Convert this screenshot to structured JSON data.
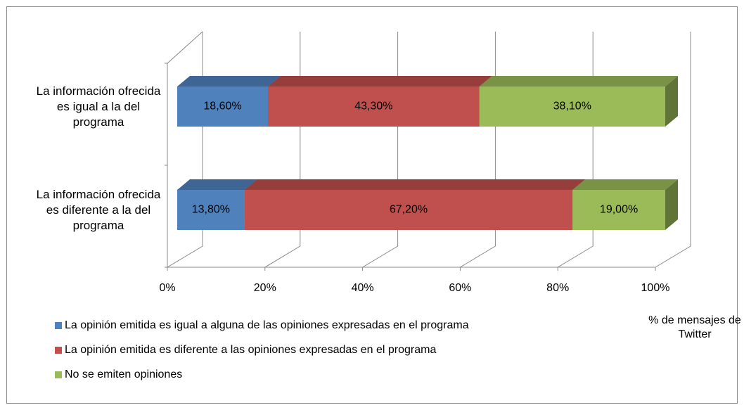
{
  "chart_data": {
    "type": "bar3d_stacked_horizontal",
    "categories": [
      "La información ofrecida es igual a la del programa",
      "La información ofrecida es diferente a la del programa"
    ],
    "series": [
      {
        "name": "La opinión emitida es igual a alguna de las opiniones expresadas en el programa",
        "color": "#4f81bd",
        "values": [
          18.6,
          13.8
        ],
        "value_labels": [
          "18,60%",
          "13,80%"
        ]
      },
      {
        "name": "La opinión emitida es diferente a las opiniones expresadas en el programa",
        "color": "#c0504d",
        "values": [
          43.3,
          67.2
        ],
        "value_labels": [
          "43,30%",
          "67,20%"
        ]
      },
      {
        "name": "No se emiten opiniones",
        "color": "#9bbb59",
        "values": [
          38.1,
          19.0
        ],
        "value_labels": [
          "38,10%",
          "19,00%"
        ]
      }
    ],
    "xlim": [
      0,
      100
    ],
    "xticks": [
      {
        "value": 0,
        "label": "0%"
      },
      {
        "value": 20,
        "label": "20%"
      },
      {
        "value": 40,
        "label": "40%"
      },
      {
        "value": 60,
        "label": "60%"
      },
      {
        "value": 80,
        "label": "80%"
      },
      {
        "value": 100,
        "label": "100%"
      }
    ],
    "xlabel": "% de mensajes de Twitter",
    "grid": true
  }
}
